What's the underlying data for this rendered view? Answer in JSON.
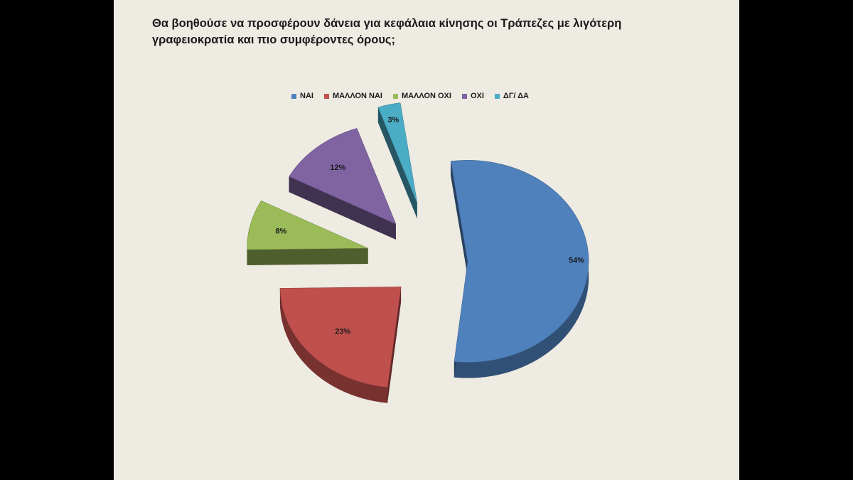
{
  "slide": {
    "title_line1": "Θα βοηθούσε να προσφέρουν δάνεια για κεφάλαια κίνησης οι Τράπεζες με λιγότερη",
    "title_line2": "γραφειοκρατία και πιο συμφέροντες όρους;"
  },
  "chart_data": {
    "type": "pie",
    "style": "3d-exploded",
    "legend_position": "top",
    "slices": [
      {
        "label": "ΝΑΙ",
        "value": 54,
        "value_label": "54%",
        "color": "#4f81bd"
      },
      {
        "label": "ΜΑΛΛΟΝ ΝΑΙ",
        "value": 23,
        "value_label": "23%",
        "color": "#c0504d"
      },
      {
        "label": "ΜΑΛΛΟΝ ΟΧΙ",
        "value": 8,
        "value_label": "8%",
        "color": "#9bbb59"
      },
      {
        "label": "ΟΧΙ",
        "value": 12,
        "value_label": "12%",
        "color": "#8064a2"
      },
      {
        "label": "ΔΓ/ ΔΑ",
        "value": 3,
        "value_label": "3%",
        "color": "#4bacc6"
      }
    ]
  }
}
